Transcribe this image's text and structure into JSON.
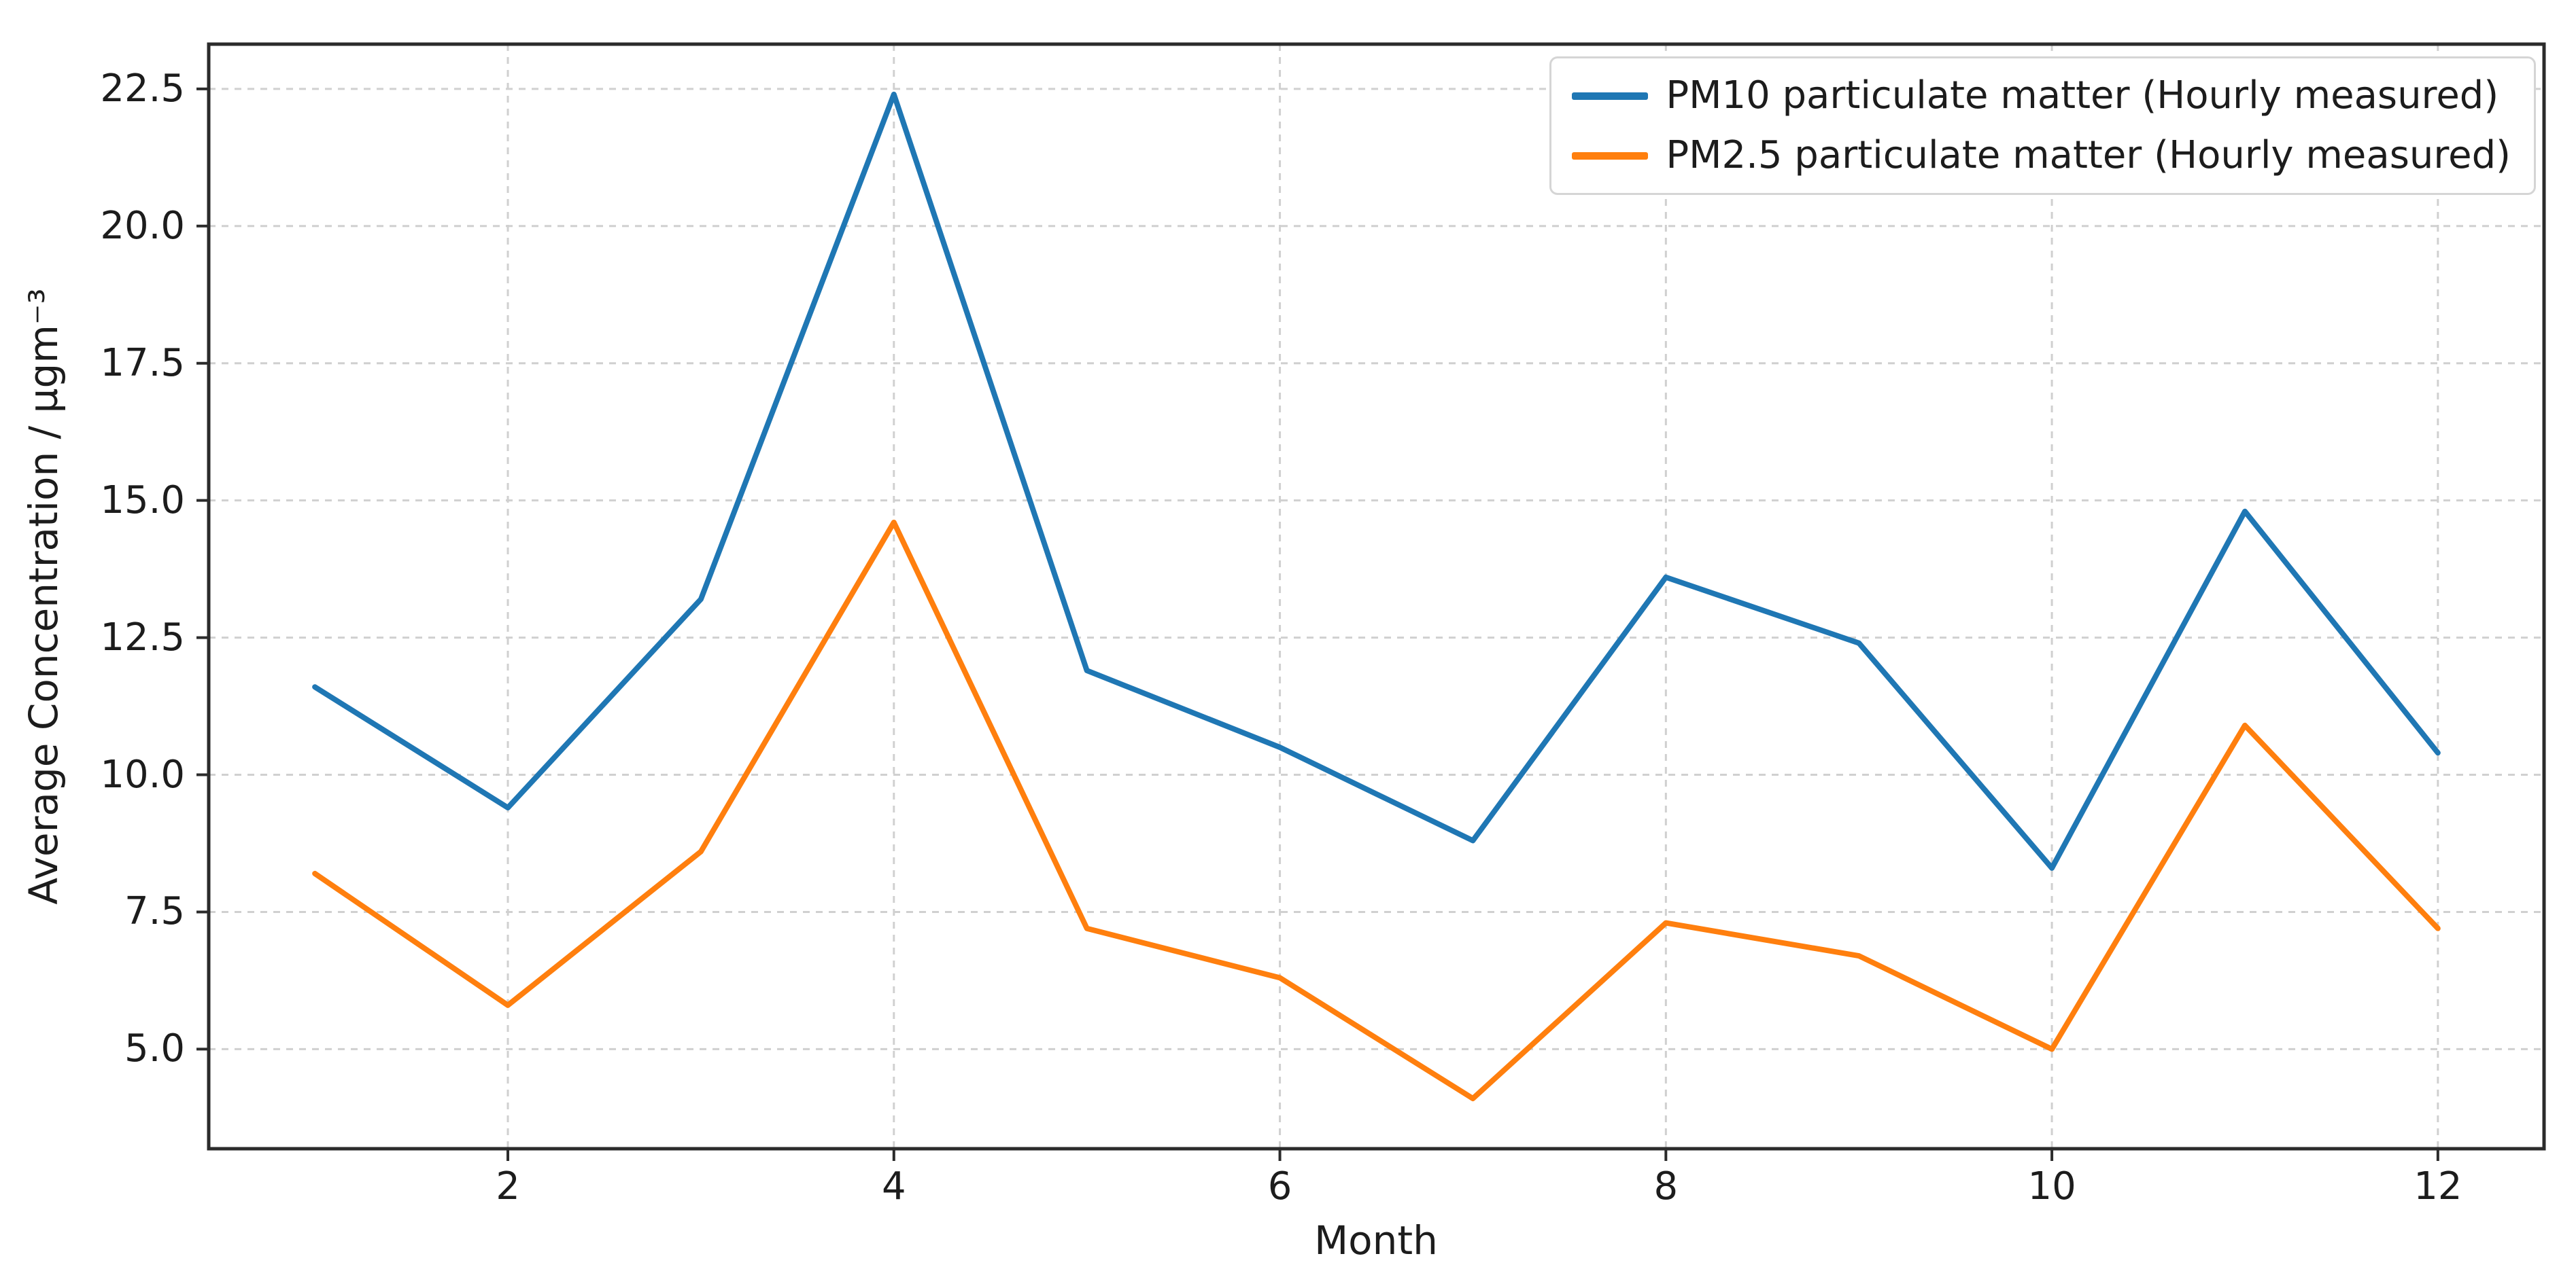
{
  "chart_data": {
    "type": "line",
    "title": "",
    "xlabel": "Month",
    "ylabel": "Average Concentration / µgm⁻³",
    "x": [
      1,
      2,
      3,
      4,
      5,
      6,
      7,
      8,
      9,
      10,
      11,
      12
    ],
    "series": [
      {
        "name": "PM10 particulate matter (Hourly measured)",
        "color": "#1f77b4",
        "values": [
          11.6,
          9.4,
          13.2,
          22.4,
          11.9,
          10.5,
          8.8,
          13.6,
          12.4,
          8.3,
          14.8,
          10.4
        ]
      },
      {
        "name": "PM2.5 particulate matter (Hourly measured)",
        "color": "#ff7f0e",
        "values": [
          8.2,
          5.8,
          8.6,
          14.6,
          7.2,
          6.3,
          4.1,
          7.3,
          6.7,
          5.0,
          10.9,
          7.2
        ]
      }
    ],
    "xlim": [
      0.45,
      12.55
    ],
    "ylim": [
      3.185,
      23.315
    ],
    "xticks": [
      2,
      4,
      6,
      8,
      10,
      12
    ],
    "xtick_labels": [
      "2",
      "4",
      "6",
      "8",
      "10",
      "12"
    ],
    "yticks": [
      5.0,
      7.5,
      10.0,
      12.5,
      15.0,
      17.5,
      20.0,
      22.5
    ],
    "ytick_labels": [
      "5.0",
      "7.5",
      "10.0",
      "12.5",
      "15.0",
      "17.5",
      "20.0",
      "22.5"
    ],
    "grid": true,
    "legend_position": "upper right"
  },
  "style": {
    "grid_color": "#d0d0d0",
    "spine_color": "#2b2b2b",
    "tick_color": "#2b2b2b",
    "text_color": "#1c1c1c",
    "background": "#ffffff"
  }
}
